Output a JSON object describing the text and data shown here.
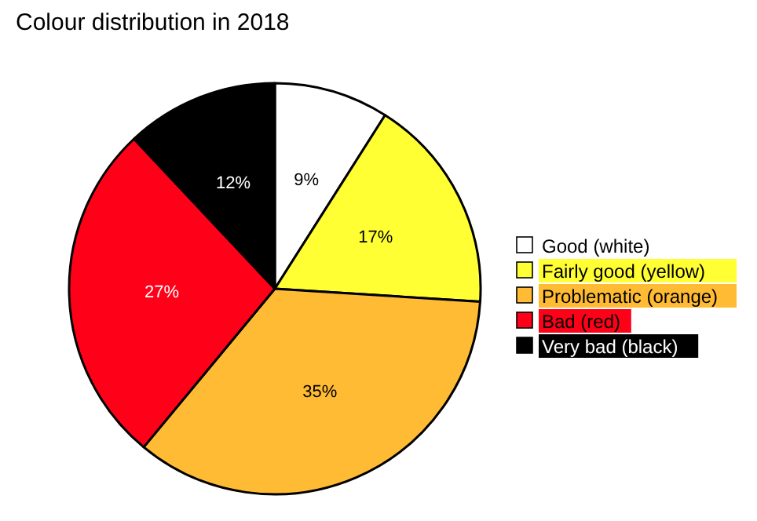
{
  "chart_data": {
    "type": "pie",
    "title": "Colour distribution in 2018",
    "categories": [
      "Good (white)",
      "Fairly good (yellow)",
      "Problematic (orange)",
      "Bad (red)",
      "Very bad (black)"
    ],
    "values": [
      9,
      17,
      35,
      27,
      12
    ],
    "colors": [
      "#ffffff",
      "#ffff33",
      "#ffbb33",
      "#ff0019",
      "#000000"
    ],
    "value_labels": [
      "9%",
      "17%",
      "35%",
      "27%",
      "12%"
    ],
    "legend": "right"
  }
}
